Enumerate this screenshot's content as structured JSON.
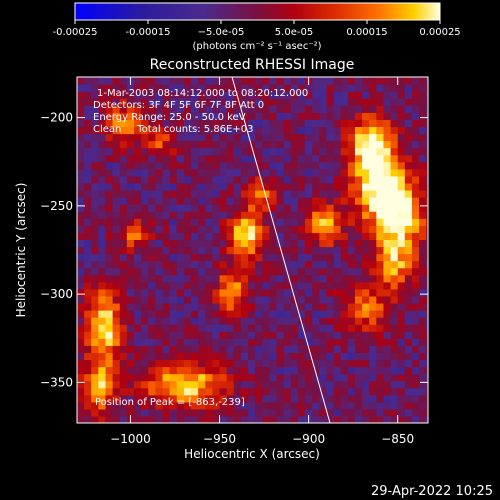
{
  "chart_data": {
    "type": "heatmap",
    "title": "Reconstructed RHESSI Image",
    "xlabel": "Heliocentric X (arcsec)",
    "ylabel": "Heliocentric Y (arcsec)",
    "xlim": [
      -1030,
      -833
    ],
    "ylim": [
      -373,
      -177
    ],
    "x_ticks": [
      -1000,
      -950,
      -900,
      -850
    ],
    "y_ticks": [
      -200,
      -250,
      -300,
      -350
    ],
    "x_tick_labels": [
      "−1000",
      "−950",
      "−900",
      "−850"
    ],
    "y_tick_labels": [
      "−200",
      "−250",
      "−300",
      "−350"
    ],
    "colorbar": {
      "range": [
        -0.00025,
        0.00025
      ],
      "tick_values": [
        -0.00025,
        -0.00015,
        -5e-05,
        5e-05,
        0.00015,
        0.00025
      ],
      "tick_labels": [
        "-0.00025",
        "-0.00015",
        "−5.0e-05",
        "5.0e-05",
        "0.00015",
        "0.00025"
      ],
      "unit_label": "(photons cm⁻² s⁻¹ asec⁻²)",
      "colors": [
        "#0000ff",
        "#2a1b9e",
        "#4a2a8e",
        "#7a1040",
        "#b00010",
        "#e03000",
        "#ff7000",
        "#ffd000",
        "#ffffe0"
      ]
    },
    "annotations": {
      "time_range": "1-Mar-2003 08:14:12.000 to 08:20:12.000",
      "detectors": "Detectors: 3F 4F 5F 6F 7F 8F Att 0",
      "energy_range": "Energy Range: 25.0 - 50.0 keV",
      "clean_counts": "Clean     Total counts: 5.86E+03",
      "peak_position": "Position of Peak = [-863,-239]"
    },
    "limb_line": {
      "x": [
        -943,
        -888
      ],
      "y": [
        -177,
        -373
      ]
    },
    "peak": {
      "x": -863,
      "y": -239
    },
    "sources": [
      {
        "x": -863,
        "y": -239,
        "sx": 10,
        "sy": 16,
        "amp": 1.0
      },
      {
        "x": -868,
        "y": -215,
        "sx": 8,
        "sy": 10,
        "amp": 0.8
      },
      {
        "x": -850,
        "y": -258,
        "sx": 9,
        "sy": 14,
        "amp": 0.85
      },
      {
        "x": -855,
        "y": -285,
        "sx": 8,
        "sy": 10,
        "amp": 0.65
      },
      {
        "x": -870,
        "y": -310,
        "sx": 10,
        "sy": 9,
        "amp": 0.55
      },
      {
        "x": -893,
        "y": -262,
        "sx": 7,
        "sy": 8,
        "amp": 0.75
      },
      {
        "x": -937,
        "y": -268,
        "sx": 7,
        "sy": 9,
        "amp": 0.95
      },
      {
        "x": -945,
        "y": -300,
        "sx": 6,
        "sy": 9,
        "amp": 0.7
      },
      {
        "x": -930,
        "y": -245,
        "sx": 6,
        "sy": 6,
        "amp": 0.6
      },
      {
        "x": -1017,
        "y": -320,
        "sx": 7,
        "sy": 15,
        "amp": 0.9
      },
      {
        "x": -1020,
        "y": -355,
        "sx": 6,
        "sy": 10,
        "amp": 0.75
      },
      {
        "x": -972,
        "y": -353,
        "sx": 16,
        "sy": 9,
        "amp": 0.85
      },
      {
        "x": -1005,
        "y": -205,
        "sx": 8,
        "sy": 8,
        "amp": 0.6
      },
      {
        "x": -985,
        "y": -215,
        "sx": 6,
        "sy": 6,
        "amp": 0.45
      },
      {
        "x": -1000,
        "y": -268,
        "sx": 6,
        "sy": 6,
        "amp": 0.5
      }
    ]
  },
  "footer": {
    "date": "29-Apr-2022 10:25"
  }
}
